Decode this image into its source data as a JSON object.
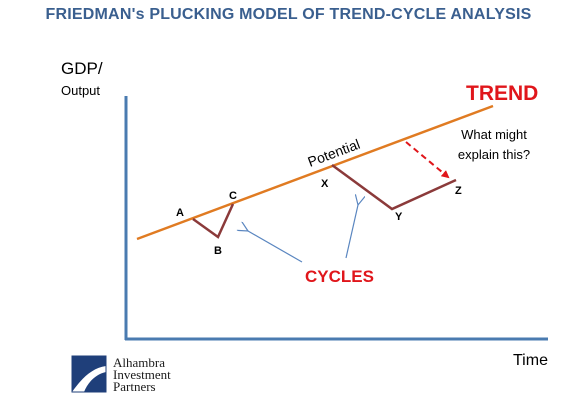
{
  "title": "FRIEDMAN's PLUCKING MODEL OF TREND-CYCLE ANALYSIS",
  "y_axis_label_1": "GDP/",
  "y_axis_label_2": "Output",
  "x_axis_label": "Time",
  "trend_label": "TREND",
  "potential_label": "Potential",
  "question_line_1": "What might",
  "question_line_2": "explain this?",
  "cycles_label": "CYCLES",
  "points": {
    "a": "A",
    "b": "B",
    "c": "C",
    "x": "X",
    "y": "Y",
    "z": "Z"
  },
  "logo": {
    "line_1": "Alhambra",
    "line_2": "Investment",
    "line_3": "Partners"
  },
  "colors": {
    "title": "#3a5f8f",
    "axes": "#4a7bb0",
    "trend_line": "#e07b22",
    "cycle_lines": "#8b3a3a",
    "annotation_red": "#e0161b",
    "pointer_arrows": "#5a86c0"
  }
}
